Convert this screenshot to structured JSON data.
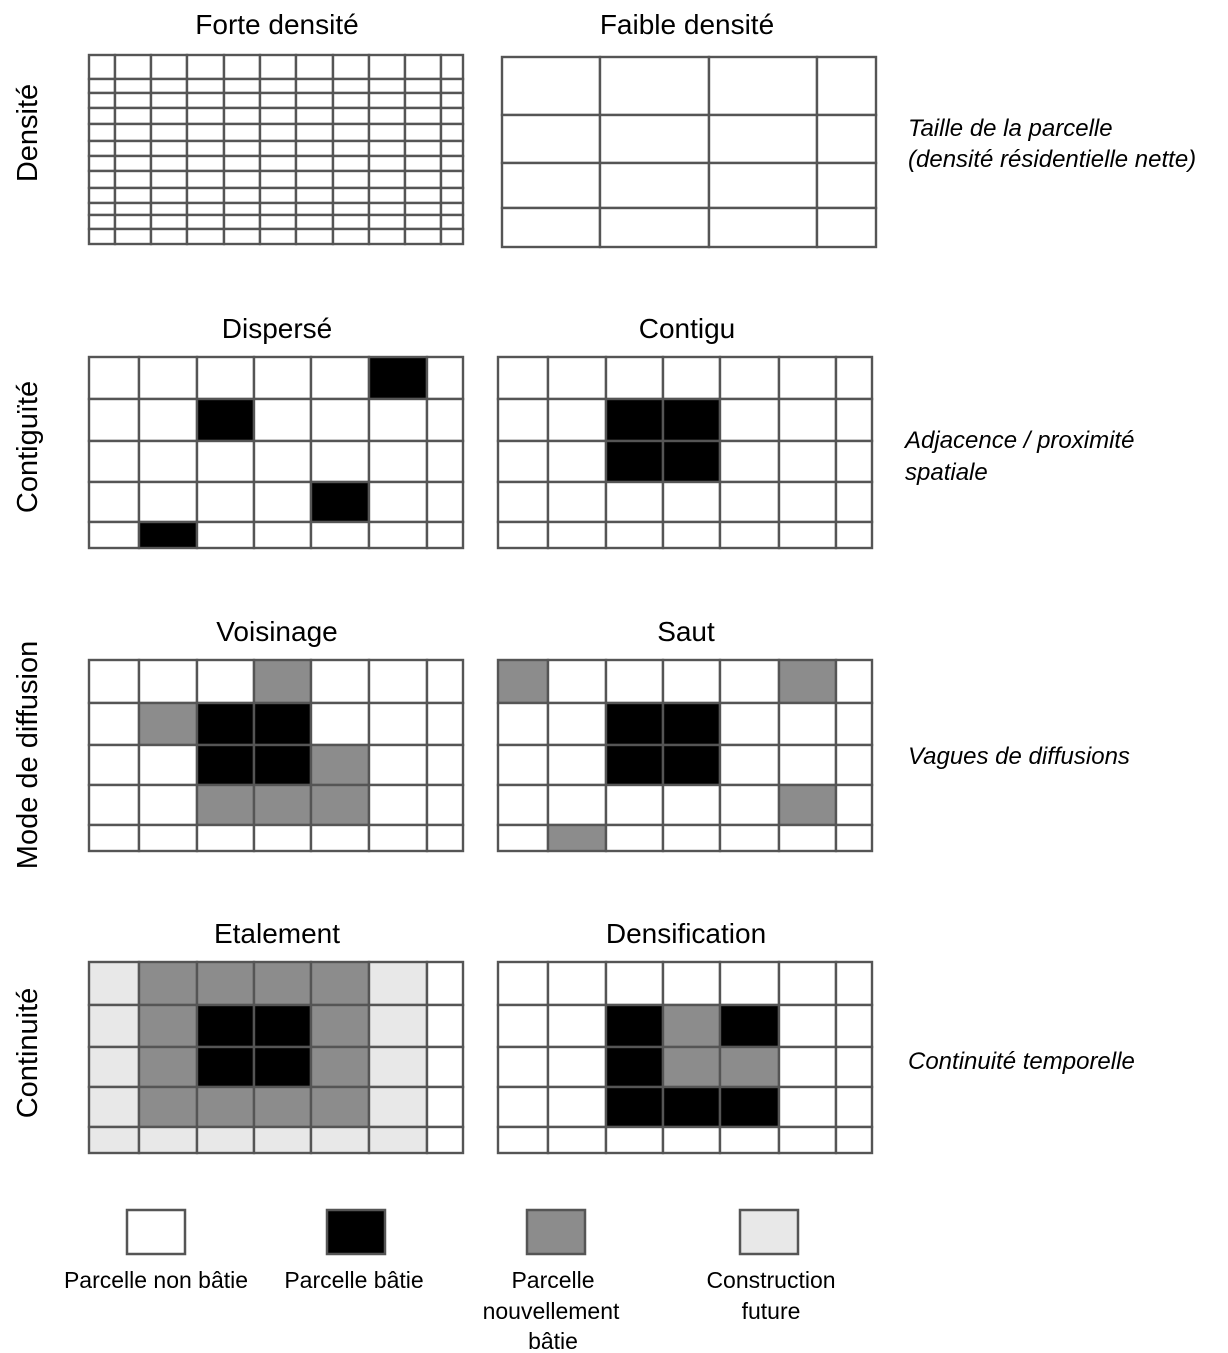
{
  "colors": {
    "unbuilt": "#ffffff",
    "built": "#000000",
    "newly_built": "#8c8c8c",
    "future": "#e8e8e8",
    "grid_line": "#555555"
  },
  "rows": [
    {
      "label": "Densité",
      "description": [
        "Taille de la parcelle",
        "(densité résidentielle nette)"
      ],
      "panels": [
        {
          "title": "Forte densité",
          "grid": "dense"
        },
        {
          "title": "Faible densité",
          "grid": "sparse"
        }
      ]
    },
    {
      "label": "Contiguïté",
      "description": [
        "Adjacence / proximité",
        "spatiale"
      ],
      "panels": [
        {
          "title": "Dispersé",
          "cells": [
            [
              0,
              0,
              0,
              0,
              0,
              1,
              0
            ],
            [
              0,
              0,
              1,
              0,
              0,
              0,
              0
            ],
            [
              0,
              0,
              0,
              0,
              0,
              0,
              0
            ],
            [
              0,
              0,
              0,
              0,
              1,
              0,
              0
            ],
            [
              0,
              1,
              0,
              0,
              0,
              0,
              0
            ]
          ]
        },
        {
          "title": "Contigu",
          "cells": [
            [
              0,
              0,
              0,
              0,
              0,
              0,
              0
            ],
            [
              0,
              0,
              1,
              1,
              0,
              0,
              0
            ],
            [
              0,
              0,
              1,
              1,
              0,
              0,
              0
            ],
            [
              0,
              0,
              0,
              0,
              0,
              0,
              0
            ],
            [
              0,
              0,
              0,
              0,
              0,
              0,
              0
            ]
          ]
        }
      ]
    },
    {
      "label": "Mode de diffusion",
      "description": [
        "Vagues de diffusions"
      ],
      "panels": [
        {
          "title": "Voisinage",
          "cells": [
            [
              0,
              0,
              0,
              2,
              0,
              0,
              0
            ],
            [
              0,
              2,
              1,
              1,
              0,
              0,
              0
            ],
            [
              0,
              0,
              1,
              1,
              2,
              0,
              0
            ],
            [
              0,
              0,
              2,
              2,
              2,
              0,
              0
            ],
            [
              0,
              0,
              0,
              0,
              0,
              0,
              0
            ]
          ]
        },
        {
          "title": "Saut",
          "cells": [
            [
              2,
              0,
              0,
              0,
              0,
              2,
              0
            ],
            [
              0,
              0,
              1,
              1,
              0,
              0,
              0
            ],
            [
              0,
              0,
              1,
              1,
              0,
              0,
              0
            ],
            [
              0,
              0,
              0,
              0,
              0,
              2,
              0
            ],
            [
              0,
              2,
              0,
              0,
              0,
              0,
              0
            ]
          ]
        }
      ]
    },
    {
      "label": "Continuité",
      "description": [
        "Continuité temporelle"
      ],
      "panels": [
        {
          "title": "Etalement",
          "cells": [
            [
              3,
              2,
              2,
              2,
              2,
              3,
              0
            ],
            [
              3,
              2,
              1,
              1,
              2,
              3,
              0
            ],
            [
              3,
              2,
              1,
              1,
              2,
              3,
              0
            ],
            [
              3,
              2,
              2,
              2,
              2,
              3,
              0
            ],
            [
              3,
              3,
              3,
              3,
              3,
              3,
              0
            ]
          ]
        },
        {
          "title": "Densification",
          "cells": [
            [
              0,
              0,
              0,
              0,
              0,
              0,
              0
            ],
            [
              0,
              0,
              1,
              2,
              1,
              0,
              0
            ],
            [
              0,
              0,
              1,
              2,
              2,
              0,
              0
            ],
            [
              0,
              0,
              1,
              1,
              1,
              0,
              0
            ],
            [
              0,
              0,
              0,
              0,
              0,
              0,
              0
            ]
          ]
        }
      ]
    }
  ],
  "legend": [
    {
      "key": "unbuilt",
      "lines": [
        "Parcelle non bâtie"
      ]
    },
    {
      "key": "built",
      "lines": [
        "Parcelle bâtie"
      ]
    },
    {
      "key": "newly_built",
      "lines": [
        "Parcelle",
        "nouvellement",
        "bâtie"
      ]
    },
    {
      "key": "future",
      "lines": [
        "Construction",
        "future"
      ]
    }
  ]
}
